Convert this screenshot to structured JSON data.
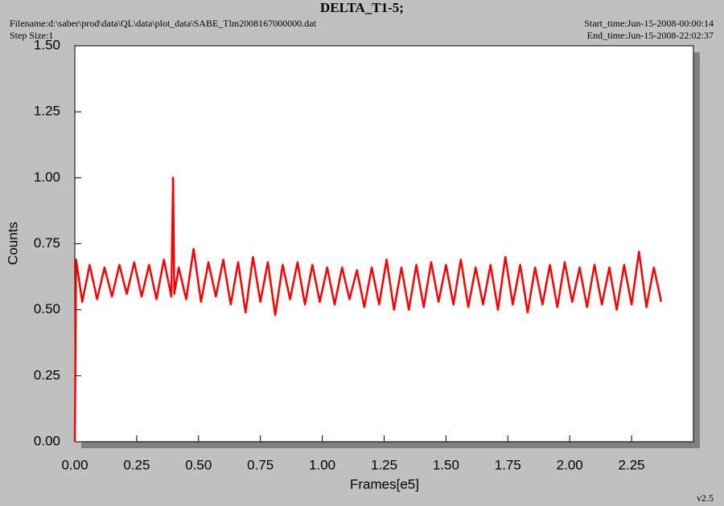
{
  "chart_data": {
    "type": "line",
    "title": "DELTA_T1-5;",
    "filename": "Filename:d:\\saber\\prod\\data\\QL\\data\\plot_data\\SABE_Tlm2008167000000.dat",
    "step_size": "Step Size:1",
    "start_time": "Start_time:Jun-15-2008-00:00:14",
    "end_time": "End_time:Jun-15-2008-22:02:37",
    "version": "v2.5",
    "x_label": "Frames[e5]",
    "y_label": "Counts",
    "color": "#ff0000",
    "xlim": [
      0,
      2.5
    ],
    "ylim": [
      0,
      1.5
    ],
    "xticks": [
      {
        "value": 0,
        "label": "0.00"
      },
      {
        "value": 0.25,
        "label": "0.25"
      },
      {
        "value": 0.5,
        "label": "0.50"
      },
      {
        "value": 0.75,
        "label": "0.75"
      },
      {
        "value": 1,
        "label": "1.00"
      },
      {
        "value": 1.25,
        "label": "1.25"
      },
      {
        "value": 1.5,
        "label": "1.50"
      },
      {
        "value": 1.75,
        "label": "1.75"
      },
      {
        "value": 2,
        "label": "2.00"
      },
      {
        "value": 2.25,
        "label": "2.25"
      }
    ],
    "yticks": [
      {
        "value": 0,
        "label": "0.00"
      },
      {
        "value": 0.25,
        "label": "0.25"
      },
      {
        "value": 0.5,
        "label": "0.50"
      },
      {
        "value": 0.75,
        "label": "0.75"
      },
      {
        "value": 1,
        "label": "1.00"
      },
      {
        "value": 1.25,
        "label": "1.25"
      },
      {
        "value": 1.5,
        "label": "1.50"
      }
    ],
    "x": [
      0,
      0.005,
      0.03,
      0.06,
      0.09,
      0.12,
      0.15,
      0.18,
      0.21,
      0.24,
      0.27,
      0.3,
      0.33,
      0.36,
      0.39,
      0.397,
      0.402,
      0.42,
      0.45,
      0.48,
      0.51,
      0.54,
      0.57,
      0.6,
      0.63,
      0.66,
      0.69,
      0.72,
      0.75,
      0.78,
      0.81,
      0.84,
      0.87,
      0.9,
      0.93,
      0.96,
      0.99,
      1.02,
      1.05,
      1.08,
      1.11,
      1.14,
      1.17,
      1.2,
      1.23,
      1.26,
      1.29,
      1.32,
      1.35,
      1.38,
      1.41,
      1.44,
      1.47,
      1.5,
      1.53,
      1.56,
      1.59,
      1.62,
      1.65,
      1.68,
      1.71,
      1.74,
      1.77,
      1.8,
      1.83,
      1.86,
      1.89,
      1.92,
      1.95,
      1.98,
      2.01,
      2.04,
      2.07,
      2.1,
      2.13,
      2.16,
      2.19,
      2.22,
      2.25,
      2.28,
      2.31,
      2.34,
      2.37
    ],
    "values": [
      0,
      0.69,
      0.53,
      0.67,
      0.54,
      0.66,
      0.55,
      0.67,
      0.56,
      0.68,
      0.55,
      0.67,
      0.54,
      0.69,
      0.55,
      1.0,
      0.56,
      0.66,
      0.54,
      0.73,
      0.53,
      0.68,
      0.55,
      0.69,
      0.52,
      0.68,
      0.49,
      0.7,
      0.53,
      0.68,
      0.48,
      0.67,
      0.54,
      0.68,
      0.52,
      0.67,
      0.53,
      0.66,
      0.52,
      0.66,
      0.54,
      0.65,
      0.51,
      0.66,
      0.52,
      0.69,
      0.5,
      0.66,
      0.5,
      0.67,
      0.51,
      0.68,
      0.53,
      0.67,
      0.52,
      0.69,
      0.51,
      0.66,
      0.52,
      0.67,
      0.5,
      0.7,
      0.52,
      0.67,
      0.49,
      0.66,
      0.52,
      0.67,
      0.51,
      0.68,
      0.53,
      0.66,
      0.51,
      0.67,
      0.52,
      0.66,
      0.5,
      0.67,
      0.52,
      0.72,
      0.51,
      0.66,
      0.53
    ]
  }
}
